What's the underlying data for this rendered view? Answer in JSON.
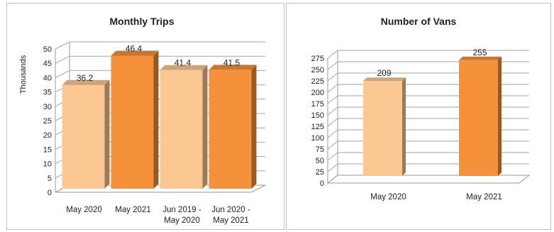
{
  "charts": [
    {
      "type": "bar",
      "title": "Monthly Trips",
      "ylabel": "Thousands",
      "categories": [
        [
          "May 2020"
        ],
        [
          "May 2021"
        ],
        [
          "Jun 2019 -",
          "May 2020"
        ],
        [
          "Jun 2020 -",
          "May 2021"
        ]
      ],
      "values": [
        36.2,
        46.4,
        41.4,
        41.5
      ],
      "value_labels": [
        "36.2",
        "46.4",
        "41.4",
        "41.5"
      ],
      "yticks": [
        0,
        5,
        10,
        15,
        20,
        25,
        30,
        35,
        40,
        45,
        50
      ],
      "ylim": [
        0,
        50
      ],
      "bar_colors": [
        "#fbc792",
        "#f5913a",
        "#fbc792",
        "#f5913a"
      ],
      "grid": true
    },
    {
      "type": "bar",
      "title": "Number of Vans",
      "ylabel": "",
      "categories": [
        [
          "May 2020"
        ],
        [
          "May 2021"
        ]
      ],
      "values": [
        209,
        255
      ],
      "value_labels": [
        "209",
        "255"
      ],
      "yticks": [
        0,
        25,
        50,
        75,
        100,
        125,
        150,
        175,
        200,
        225,
        250,
        275
      ],
      "ylim": [
        0,
        275
      ],
      "bar_colors": [
        "#fbc792",
        "#f5913a"
      ],
      "grid": true
    }
  ]
}
